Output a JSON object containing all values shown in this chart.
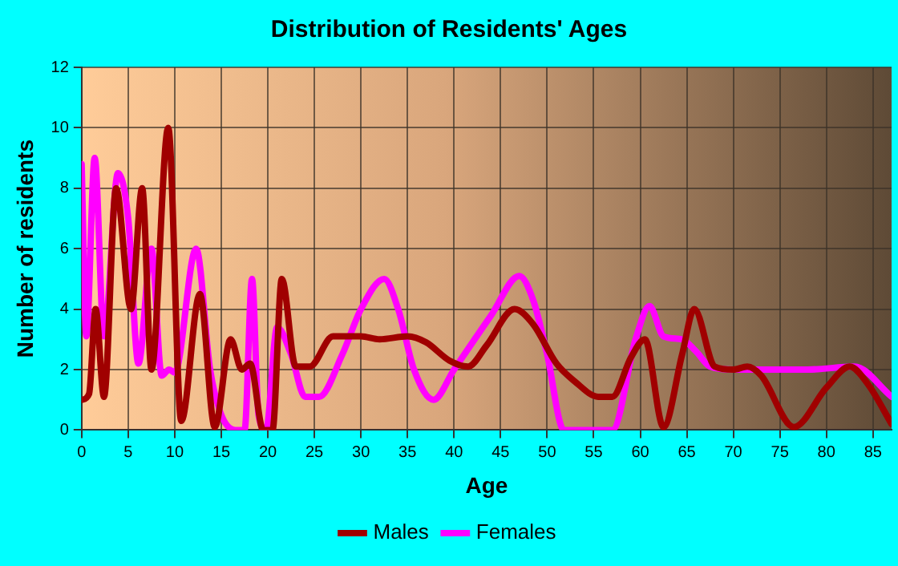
{
  "chart_data": {
    "type": "line",
    "title": "Distribution of Residents' Ages",
    "xlabel": "Age",
    "ylabel": "Number of residents",
    "xlim": [
      0,
      87
    ],
    "xticks": [
      0,
      5,
      10,
      15,
      20,
      25,
      30,
      35,
      40,
      45,
      50,
      55,
      60,
      65,
      70,
      75,
      80,
      85
    ],
    "ylim": [
      0,
      12
    ],
    "yticks": [
      0,
      2,
      4,
      6,
      8,
      10,
      12
    ],
    "grid": true,
    "legend": "bottom",
    "marker": "none",
    "line_style": "solid",
    "series": [
      {
        "name": "Males",
        "color": "#a00000",
        "x": [
          0,
          0.8,
          1.5,
          2.4,
          3.7,
          5.3,
          6.5,
          7.5,
          9.3,
          10.7,
          12.7,
          14.3,
          16,
          17.2,
          18.1,
          19.5,
          20.5,
          21.5,
          23,
          24.5,
          27,
          30,
          32,
          35,
          37,
          39.5,
          41.5,
          43.5,
          46.5,
          48.5,
          51,
          53,
          55.5,
          57,
          59,
          60.5,
          62.5,
          64.5,
          65.8,
          68,
          70,
          71.5,
          73,
          76.5,
          80,
          82.5,
          84.5,
          87
        ],
        "values": [
          1,
          1.2,
          4,
          1.1,
          8,
          4,
          8,
          2,
          10,
          0.3,
          4.5,
          0.1,
          3,
          2,
          2.2,
          0,
          0,
          5,
          2.1,
          2.1,
          3.1,
          3.1,
          3,
          3.1,
          2.9,
          2.3,
          2.1,
          2.8,
          4,
          3.5,
          2.2,
          1.6,
          1.1,
          1.1,
          2.4,
          3,
          0.1,
          2.5,
          4,
          2.1,
          2,
          2.1,
          1.8,
          0.1,
          1.4,
          2.1,
          1.5,
          0.2
        ]
      },
      {
        "name": "Females",
        "color": "#ff00ff",
        "x": [
          0,
          0.5,
          1.4,
          2.4,
          3.9,
          5,
          6.1,
          7.5,
          8.6,
          9.4,
          10,
          12.3,
          13.8,
          15,
          16.5,
          17.5,
          18.3,
          19,
          19.8,
          21,
          22.5,
          24,
          25.5,
          28,
          30,
          32.5,
          34,
          35.7,
          37.8,
          40,
          44,
          47,
          48.5,
          50,
          51.8,
          57,
          59.5,
          61,
          62.5,
          64.5,
          66,
          67.5,
          70,
          75,
          78,
          83,
          87
        ],
        "values": [
          8.8,
          3.1,
          9,
          3.1,
          8.5,
          7,
          2.2,
          6,
          1.8,
          2,
          1.9,
          6,
          2,
          0.5,
          0,
          0,
          5,
          0.5,
          0,
          3.4,
          2.5,
          1.1,
          1.1,
          2.5,
          4,
          5,
          4,
          2,
          1,
          2,
          3.8,
          5.1,
          4.3,
          2.5,
          0,
          0,
          3,
          4.1,
          3.1,
          3,
          2.6,
          2.1,
          2,
          2,
          2,
          2.1,
          1.1
        ]
      }
    ]
  }
}
